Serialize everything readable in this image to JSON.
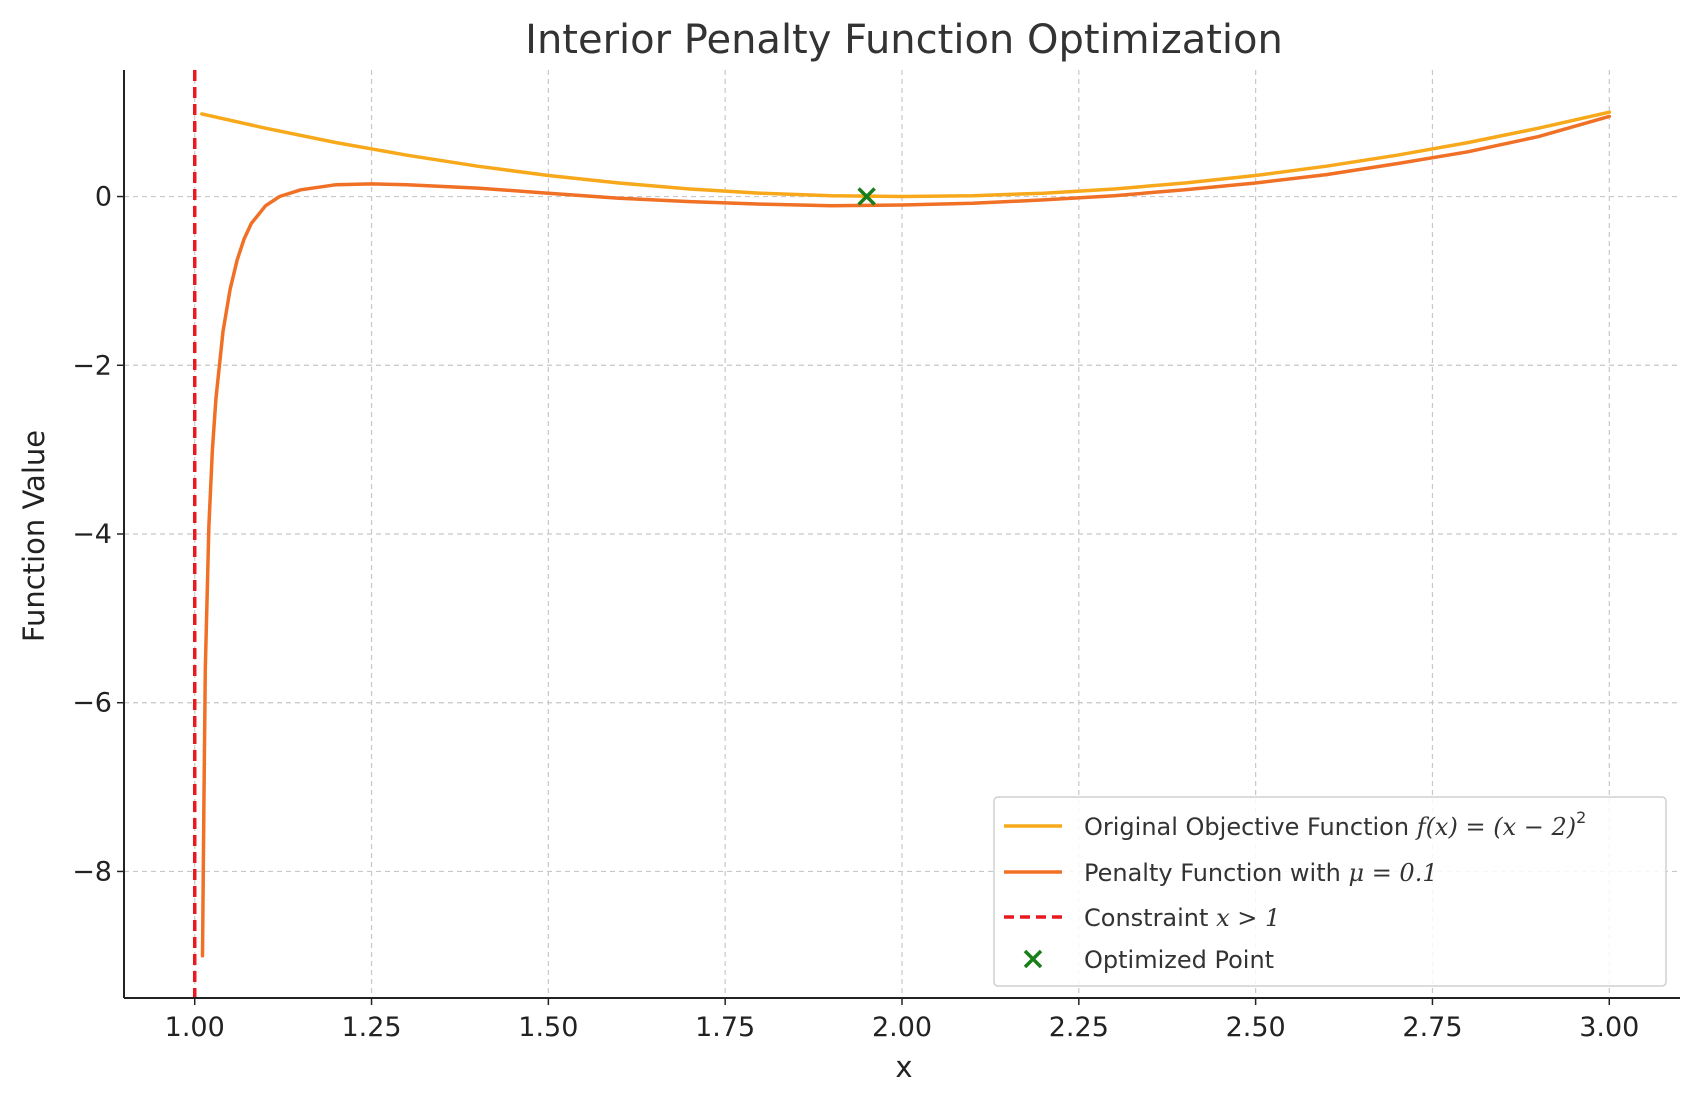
{
  "chart_data": {
    "type": "line",
    "title": "Interior Penalty Function Optimization",
    "xlabel": "x",
    "ylabel": "Function Value",
    "xlim": [
      0.9,
      3.1
    ],
    "ylim": [
      -9.5,
      1.5
    ],
    "x_ticks": [
      1.0,
      1.25,
      1.5,
      1.75,
      2.0,
      2.25,
      2.5,
      2.75,
      3.0
    ],
    "x_tick_labels": [
      "1.00",
      "1.25",
      "1.50",
      "1.75",
      "2.00",
      "2.25",
      "2.50",
      "2.75",
      "3.00"
    ],
    "y_ticks": [
      -8,
      -6,
      -4,
      -2,
      0
    ],
    "y_tick_labels": [
      "−8",
      "−6",
      "−4",
      "−2",
      "0"
    ],
    "grid": true,
    "legend_position": "bottom-right",
    "series": [
      {
        "name": "Original Objective Function f(x) = (x − 2)²",
        "color": "#f7a81b",
        "style": "solid",
        "points": [
          [
            1.01,
            0.98
          ],
          [
            1.1,
            0.81
          ],
          [
            1.2,
            0.64
          ],
          [
            1.3,
            0.49
          ],
          [
            1.4,
            0.36
          ],
          [
            1.5,
            0.25
          ],
          [
            1.6,
            0.16
          ],
          [
            1.7,
            0.09
          ],
          [
            1.8,
            0.04
          ],
          [
            1.9,
            0.01
          ],
          [
            2.0,
            0.0
          ],
          [
            2.1,
            0.01
          ],
          [
            2.2,
            0.04
          ],
          [
            2.3,
            0.09
          ],
          [
            2.4,
            0.16
          ],
          [
            2.5,
            0.25
          ],
          [
            2.6,
            0.36
          ],
          [
            2.7,
            0.49
          ],
          [
            2.8,
            0.64
          ],
          [
            2.9,
            0.81
          ],
          [
            3.0,
            1.0
          ]
        ]
      },
      {
        "name": "Penalty Function with μ = 0.1",
        "color": "#f07026",
        "style": "solid",
        "points": [
          [
            1.011,
            -9.0
          ],
          [
            1.013,
            -7.2
          ],
          [
            1.015,
            -5.6
          ],
          [
            1.02,
            -3.9
          ],
          [
            1.025,
            -3.0
          ],
          [
            1.03,
            -2.4
          ],
          [
            1.04,
            -1.6
          ],
          [
            1.05,
            -1.1
          ],
          [
            1.06,
            -0.75
          ],
          [
            1.07,
            -0.5
          ],
          [
            1.08,
            -0.32
          ],
          [
            1.1,
            -0.11
          ],
          [
            1.12,
            0.0
          ],
          [
            1.15,
            0.08
          ],
          [
            1.2,
            0.14
          ],
          [
            1.25,
            0.15
          ],
          [
            1.3,
            0.14
          ],
          [
            1.4,
            0.1
          ],
          [
            1.5,
            0.04
          ],
          [
            1.6,
            -0.02
          ],
          [
            1.7,
            -0.06
          ],
          [
            1.8,
            -0.09
          ],
          [
            1.9,
            -0.11
          ],
          [
            2.0,
            -0.1
          ],
          [
            2.1,
            -0.08
          ],
          [
            2.2,
            -0.04
          ],
          [
            2.3,
            0.01
          ],
          [
            2.4,
            0.08
          ],
          [
            2.5,
            0.16
          ],
          [
            2.6,
            0.26
          ],
          [
            2.7,
            0.39
          ],
          [
            2.8,
            0.53
          ],
          [
            2.9,
            0.71
          ],
          [
            3.0,
            0.95
          ]
        ]
      },
      {
        "name": "Constraint x > 1",
        "color": "#e8191f",
        "style": "dashed",
        "x_value": 1.0
      },
      {
        "name": "Optimized Point",
        "color": "#1a7f1a",
        "style": "marker-x",
        "points": [
          [
            1.95,
            0.0
          ]
        ]
      }
    ],
    "legend": {
      "original": {
        "text": "Original Objective Function ",
        "math": "f(x) = (x − 2)",
        "sup": "2"
      },
      "penalty": {
        "text": "Penalty Function with ",
        "math": "μ = 0.1"
      },
      "constraint": {
        "text": "Constraint ",
        "math": "x > 1"
      },
      "optimized": {
        "text": "Optimized Point"
      }
    }
  }
}
